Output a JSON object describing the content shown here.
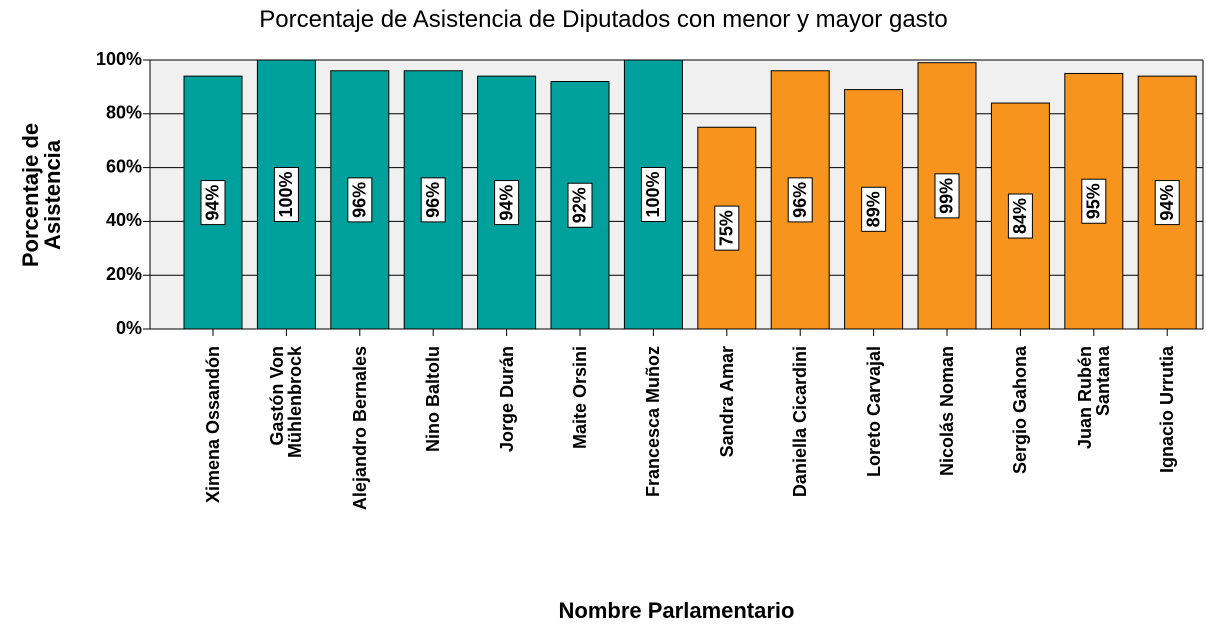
{
  "chart_data": {
    "type": "bar",
    "title": "Porcentaje de Asistencia de Diputados con menor y mayor gasto",
    "x_label": "Nombre Parlamentario",
    "y_label": "Porcentaje de\nAsistencia",
    "categories": [
      "Ximena Ossandón",
      "Gastón Von\nMühlenbrock",
      "Alejandro Bernales",
      "Nino Baltolu",
      "Jorge Durán",
      "Maite Orsini",
      "Francesca Muñoz",
      "Sandra Amar",
      "Daniella Cicardini",
      "Loreto Carvajal",
      "Nicolás Noman",
      "Sergio Gahona",
      "Juan Rubén\nSantana",
      "Ignacio Urrutia"
    ],
    "values": [
      94,
      100,
      96,
      96,
      94,
      92,
      100,
      75,
      96,
      89,
      99,
      84,
      95,
      94
    ],
    "value_labels": [
      "94%",
      "100%",
      "96%",
      "96%",
      "94%",
      "92%",
      "100%",
      "75%",
      "96%",
      "89%",
      "99%",
      "84%",
      "95%",
      "94%"
    ],
    "colors": [
      "#00a19c",
      "#00a19c",
      "#00a19c",
      "#00a19c",
      "#00a19c",
      "#00a19c",
      "#00a19c",
      "#f7941d",
      "#f7941d",
      "#f7941d",
      "#f7941d",
      "#f7941d",
      "#f7941d",
      "#f7941d"
    ],
    "ylim": [
      0,
      100
    ],
    "yticks": [
      {
        "value": 0,
        "label": "0%"
      },
      {
        "value": 20,
        "label": "20%"
      },
      {
        "value": 40,
        "label": "40%"
      },
      {
        "value": 60,
        "label": "60%"
      },
      {
        "value": 80,
        "label": "80%"
      },
      {
        "value": 100,
        "label": "100%"
      }
    ],
    "grid": true
  }
}
